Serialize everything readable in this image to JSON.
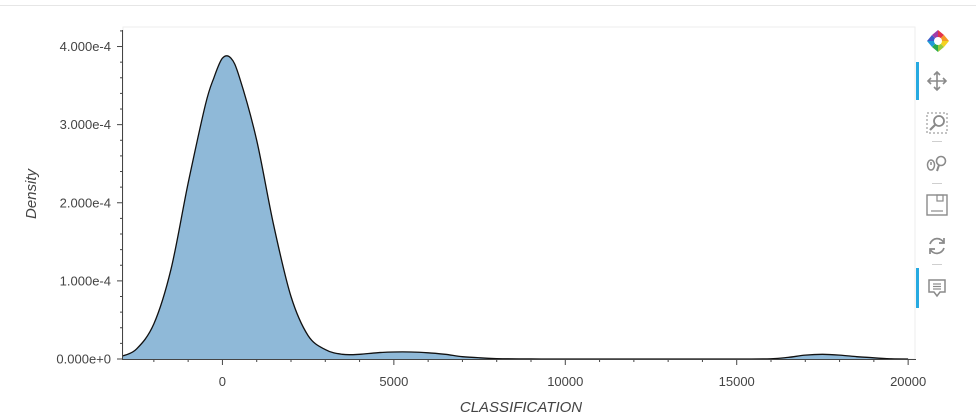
{
  "chart_data": {
    "type": "area",
    "xlabel": "CLASSIFICATION",
    "ylabel": "Density",
    "xlim": [
      -2900,
      20200
    ],
    "ylim": [
      0,
      0.000425
    ],
    "x_ticks": [
      0,
      5000,
      10000,
      15000,
      20000
    ],
    "x_tick_labels": [
      "0",
      "5000",
      "10000",
      "15000",
      "20000"
    ],
    "y_ticks": [
      0,
      0.0001,
      0.0002,
      0.0003,
      0.0004
    ],
    "y_tick_labels": [
      "0.000e+0",
      "1.000e-4",
      "2.000e-4",
      "3.000e-4",
      "4.000e-4"
    ],
    "fill_color": "#8fb9d8",
    "line_color": "#111111",
    "grid": false,
    "series": [
      {
        "x": [
          -2900,
          -2500,
          -2000,
          -1500,
          -1000,
          -500,
          -250,
          0,
          250,
          500,
          1000,
          1500,
          2000,
          2500,
          3000,
          3500,
          4000,
          4500,
          5000,
          5500,
          6000,
          6500,
          7000,
          7500,
          8000,
          9000,
          10000,
          12000,
          14000,
          15000,
          16000,
          16500,
          17000,
          17500,
          18000,
          18500,
          19000,
          19500,
          20000
        ],
        "y": [
          4e-06,
          1.3e-05,
          4.5e-05,
          0.000115,
          0.000225,
          0.000325,
          0.00036,
          0.000385,
          0.000385,
          0.00036,
          0.00028,
          0.00017,
          8e-05,
          3e-05,
          1.2e-05,
          6e-06,
          6e-06,
          8e-06,
          9e-06,
          9e-06,
          8e-06,
          6e-06,
          3e-06,
          1.5e-06,
          5e-07,
          1e-07,
          0,
          0,
          0,
          0,
          3e-07,
          2e-06,
          5e-06,
          6e-06,
          5e-06,
          3e-06,
          1.5e-06,
          3e-07,
          0
        ]
      }
    ]
  },
  "toolbar": {
    "logo_icon": "bokeh-logo-icon",
    "tools": [
      {
        "icon": "pan-icon",
        "active": true
      },
      {
        "icon": "box-zoom-icon",
        "active": false
      },
      {
        "icon": "wheel-zoom-icon",
        "active": false
      },
      {
        "icon": "save-icon",
        "active": false
      },
      {
        "icon": "reset-icon",
        "active": false
      },
      {
        "icon": "hover-icon",
        "active": true
      }
    ]
  }
}
